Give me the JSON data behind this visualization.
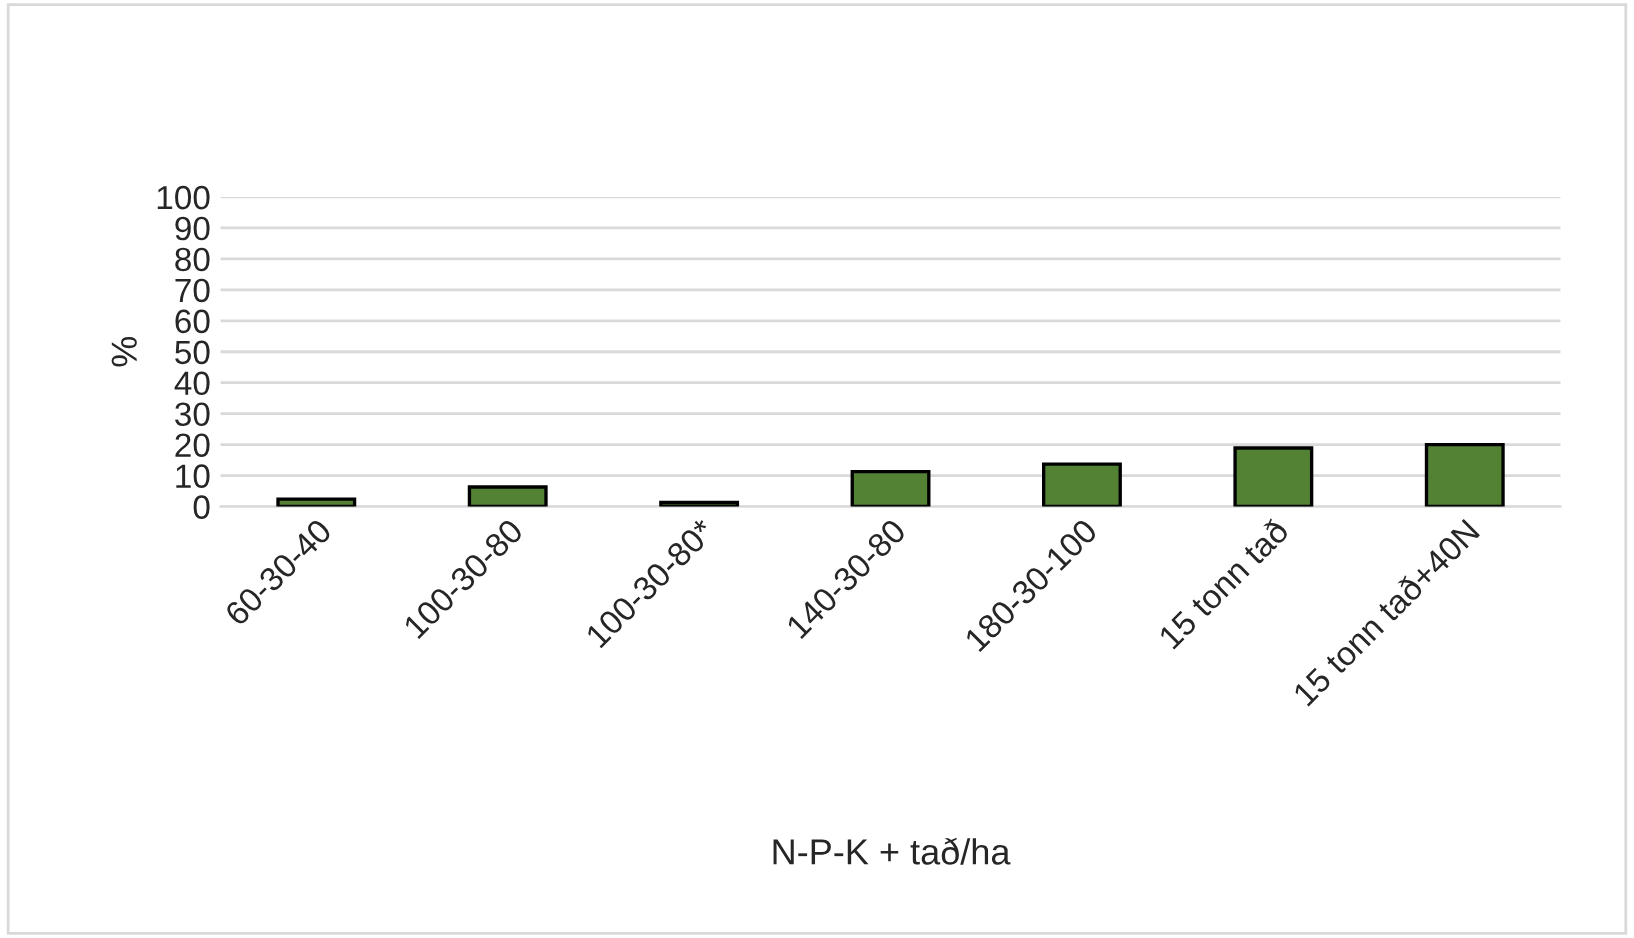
{
  "chart_data": {
    "type": "bar",
    "xlabel": "N-P-K + tað/ha",
    "ylabel": "%",
    "categories": [
      "60-30-40",
      "100-30-80",
      "100-30-80*",
      "140-30-80",
      "180-30-100",
      "15 tonn tað",
      "15 tonn tað+40N"
    ],
    "values": [
      2.4,
      6.3,
      1.3,
      11.3,
      13.7,
      18.9,
      20
    ],
    "color": "#548235",
    "ylim": [
      0,
      100
    ],
    "yticks": [
      0,
      10,
      20,
      30,
      40,
      50,
      60,
      70,
      80,
      90,
      100
    ],
    "grid": "y",
    "legend": false
  }
}
